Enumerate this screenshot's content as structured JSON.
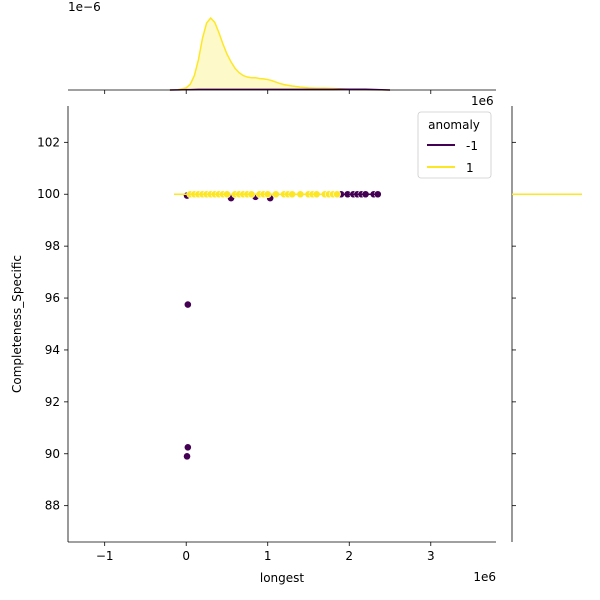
{
  "chart_data": {
    "type": "scatter",
    "kind": "jointplot",
    "xlabel": "longest",
    "ylabel": "Completeness_Specific",
    "x_scale_label": "1e6",
    "y_marginal_scale_label": "1e6",
    "x_marginal_density_scale_label": "1e−6",
    "xlim": [
      -1.45,
      3.8
    ],
    "ylim": [
      86.6,
      103.4
    ],
    "xticks": [
      -1,
      0,
      1,
      2,
      3
    ],
    "yticks": [
      88,
      90,
      92,
      94,
      96,
      98,
      100,
      102
    ],
    "legend": {
      "title": "anomaly",
      "position": "top-right",
      "entries": [
        {
          "label": "-1",
          "color": "#440154"
        },
        {
          "label": "1",
          "color": "#fde725"
        }
      ]
    },
    "series": [
      {
        "name": "-1",
        "color": "#440154",
        "points": [
          [
            0.01,
            99.95
          ],
          [
            0.55,
            99.85
          ],
          [
            0.85,
            99.9
          ],
          [
            1.03,
            99.85
          ],
          [
            1.9,
            100.0
          ],
          [
            1.98,
            100.0
          ],
          [
            2.05,
            100.0
          ],
          [
            2.1,
            100.0
          ],
          [
            2.15,
            100.0
          ],
          [
            2.2,
            100.0
          ],
          [
            2.3,
            100.0
          ],
          [
            2.35,
            100.0
          ],
          [
            0.02,
            95.75
          ],
          [
            0.02,
            90.25
          ],
          [
            0.01,
            89.9
          ]
        ]
      },
      {
        "name": "1",
        "color": "#fde725",
        "points": [
          [
            0.05,
            100.0
          ],
          [
            0.1,
            100.0
          ],
          [
            0.15,
            100.0
          ],
          [
            0.2,
            100.0
          ],
          [
            0.25,
            100.0
          ],
          [
            0.3,
            100.0
          ],
          [
            0.35,
            100.0
          ],
          [
            0.4,
            100.0
          ],
          [
            0.45,
            100.0
          ],
          [
            0.5,
            100.0
          ],
          [
            0.6,
            100.0
          ],
          [
            0.65,
            100.0
          ],
          [
            0.7,
            100.0
          ],
          [
            0.75,
            100.0
          ],
          [
            0.8,
            100.0
          ],
          [
            0.9,
            100.0
          ],
          [
            0.95,
            100.0
          ],
          [
            1.0,
            100.0
          ],
          [
            1.1,
            100.0
          ],
          [
            1.2,
            100.0
          ],
          [
            1.25,
            100.0
          ],
          [
            1.3,
            100.0
          ],
          [
            1.4,
            100.0
          ],
          [
            1.5,
            100.0
          ],
          [
            1.55,
            100.0
          ],
          [
            1.6,
            100.0
          ],
          [
            1.7,
            100.0
          ],
          [
            1.75,
            100.0
          ],
          [
            1.8,
            100.0
          ],
          [
            1.85,
            100.0
          ]
        ]
      }
    ],
    "kde_x": {
      "x": [
        -0.2,
        -0.1,
        0.0,
        0.05,
        0.1,
        0.15,
        0.2,
        0.25,
        0.3,
        0.35,
        0.4,
        0.45,
        0.5,
        0.55,
        0.6,
        0.65,
        0.7,
        0.75,
        0.8,
        0.85,
        0.9,
        0.95,
        1.0,
        1.05,
        1.1,
        1.15,
        1.2,
        1.3,
        1.4,
        1.5,
        1.6,
        1.7,
        1.8,
        1.9,
        2.0,
        2.1,
        2.2,
        2.3,
        2.4,
        2.5
      ],
      "anomaly_1": [
        0.0,
        0.005,
        0.03,
        0.08,
        0.2,
        0.42,
        0.72,
        0.93,
        1.0,
        0.94,
        0.8,
        0.64,
        0.5,
        0.39,
        0.3,
        0.24,
        0.2,
        0.18,
        0.17,
        0.17,
        0.16,
        0.155,
        0.145,
        0.13,
        0.11,
        0.09,
        0.075,
        0.055,
        0.04,
        0.03,
        0.025,
        0.025,
        0.02,
        0.015,
        0.01,
        0.007,
        0.005,
        0.003,
        0.002,
        0.0
      ],
      "anomaly_neg1": [
        0.0,
        0.002,
        0.005,
        0.006,
        0.007,
        0.008,
        0.008,
        0.008,
        0.008,
        0.008,
        0.008,
        0.008,
        0.008,
        0.008,
        0.008,
        0.008,
        0.008,
        0.008,
        0.008,
        0.008,
        0.008,
        0.008,
        0.008,
        0.008,
        0.008,
        0.008,
        0.008,
        0.008,
        0.008,
        0.008,
        0.008,
        0.008,
        0.009,
        0.01,
        0.011,
        0.011,
        0.01,
        0.007,
        0.003,
        0.0
      ]
    }
  }
}
